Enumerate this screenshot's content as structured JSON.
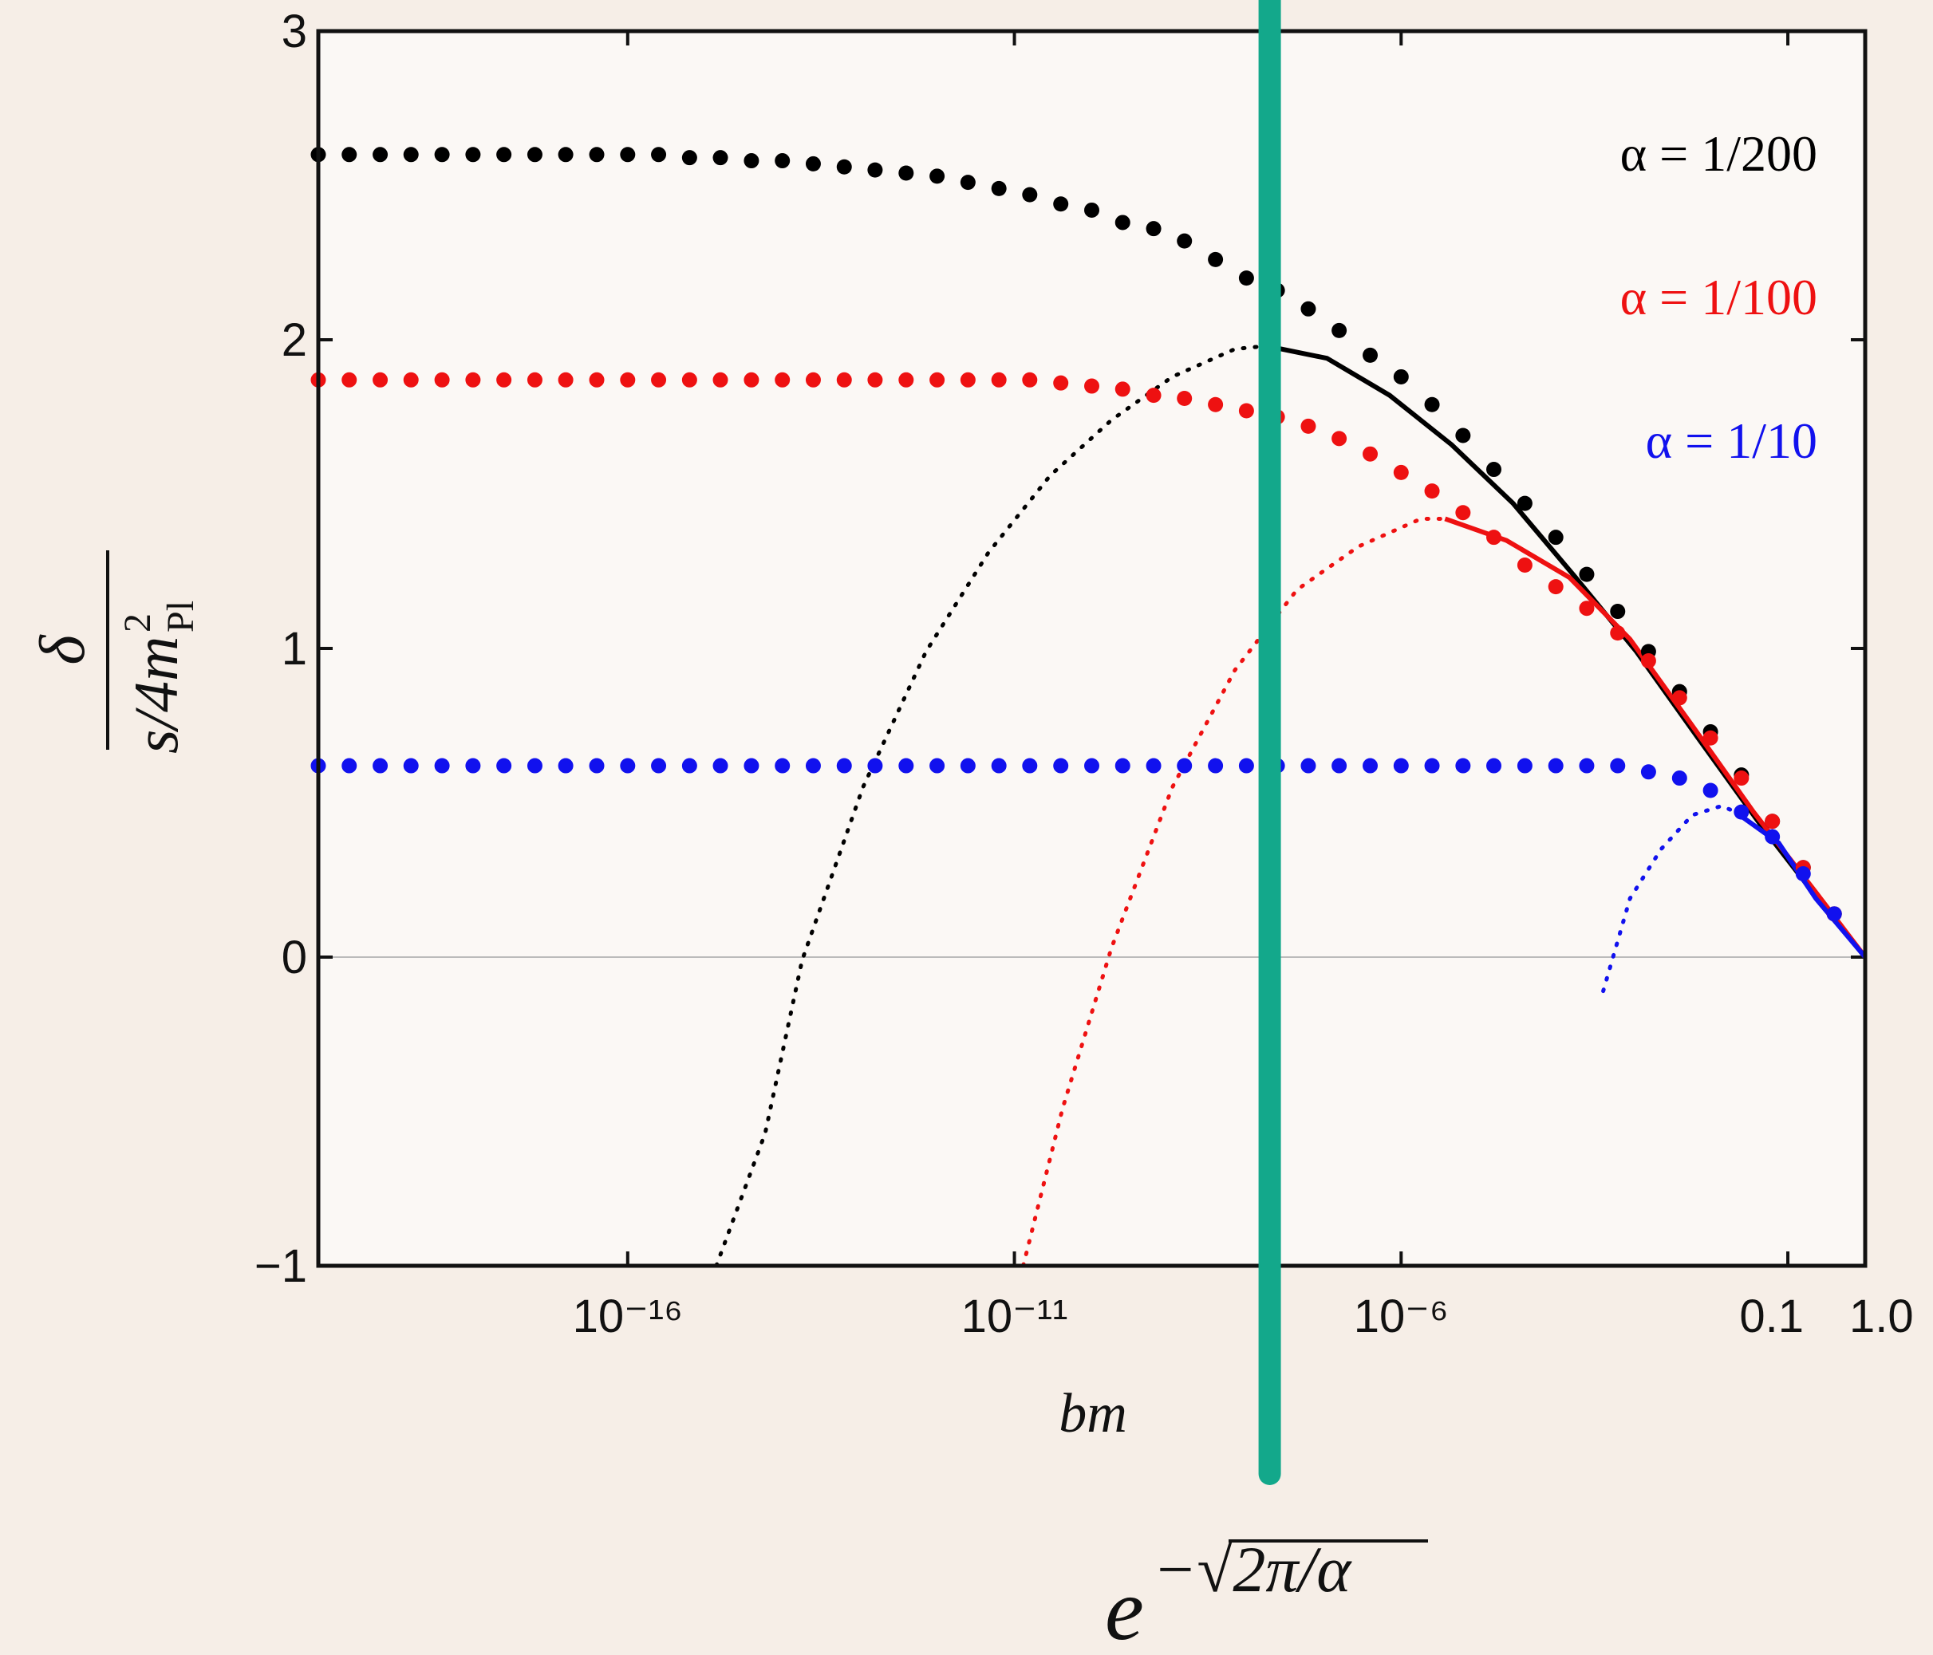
{
  "chart_data": {
    "type": "scatter",
    "xlog": true,
    "xlim": [
      1e-20,
      1
    ],
    "ylim": [
      -1,
      3
    ],
    "xticks": [
      {
        "value": 1e-16,
        "label": "10⁻¹⁶"
      },
      {
        "value": 1e-11,
        "label": "10⁻¹¹"
      },
      {
        "value": 1e-06,
        "label": "10⁻⁶"
      },
      0.1,
      {
        "value": 1,
        "label": "1.0"
      }
    ],
    "yticks": [
      {
        "value": -1,
        "label": "−1"
      },
      0,
      1,
      2,
      3
    ],
    "zero_line": true,
    "legend": "upper right",
    "xlabel": "bm",
    "ylabel": {
      "numerator": "δ",
      "denominator": "s/4m",
      "sup": "2",
      "sub": "Pl"
    },
    "annotation": {
      "base": "e",
      "exponent": "−√2π/α"
    },
    "vband": {
      "x": 2e-08,
      "color": "#13a88b"
    },
    "x": [
      1e-20,
      2.51e-20,
      6.31e-20,
      1.58e-19,
      3.98e-19,
      1e-18,
      2.51e-18,
      6.31e-18,
      1.58e-17,
      3.98e-17,
      1e-16,
      2.51e-16,
      6.31e-16,
      1.58e-15,
      3.98e-15,
      1e-14,
      2.51e-14,
      6.31e-14,
      1.58e-13,
      3.98e-13,
      1e-12,
      2.51e-12,
      6.31e-12,
      1.58e-11,
      3.98e-11,
      1e-10,
      2.51e-10,
      6.31e-10,
      1.58e-09,
      3.98e-09,
      1e-08,
      2.51e-08,
      6.31e-08,
      1.58e-07,
      3.98e-07,
      1e-06,
      2.51e-06,
      6.31e-06,
      1.58e-05,
      3.98e-05,
      0.0001,
      0.000251,
      0.000631,
      0.00158,
      0.00398,
      0.01,
      0.0251,
      0.0631,
      0.158,
      0.398
    ],
    "series": [
      {
        "name": "α = 1/200",
        "color": "#000000",
        "values": [
          2.6,
          2.6,
          2.6,
          2.6,
          2.6,
          2.6,
          2.6,
          2.6,
          2.6,
          2.6,
          2.6,
          2.6,
          2.59,
          2.59,
          2.58,
          2.58,
          2.57,
          2.56,
          2.55,
          2.54,
          2.53,
          2.51,
          2.49,
          2.47,
          2.44,
          2.42,
          2.38,
          2.36,
          2.32,
          2.26,
          2.2,
          2.16,
          2.1,
          2.03,
          1.95,
          1.88,
          1.79,
          1.69,
          1.58,
          1.47,
          1.36,
          1.24,
          1.12,
          0.99,
          0.86,
          0.73,
          0.59,
          0.44,
          0.29,
          0.14
        ],
        "curve_dotted": {
          "x": [
            1.4e-15,
            6e-15,
            1.8e-14,
            1.1e-13,
            7.2e-13,
            4.6e-12,
            2.9e-11,
            1.8e-10,
            1.1e-09,
            7.1e-09,
            1.8e-08
          ],
          "values": [
            -1,
            -0.57,
            -0.01,
            0.55,
            0.99,
            1.31,
            1.56,
            1.74,
            1.88,
            1.97,
            1.98
          ]
        },
        "curve_solid": {
          "x": [
            1.8e-08,
            1.1e-07,
            7.1e-07,
            4.5e-06,
            2.8e-05,
            0.00018,
            0.0011,
            0.0069,
            0.044,
            0.28,
            1
          ],
          "values": [
            1.98,
            1.94,
            1.82,
            1.66,
            1.47,
            1.23,
            0.99,
            0.71,
            0.43,
            0.17,
            0
          ]
        }
      },
      {
        "name": "α = 1/100",
        "color": "#ee1111",
        "values": [
          1.87,
          1.87,
          1.87,
          1.87,
          1.87,
          1.87,
          1.87,
          1.87,
          1.87,
          1.87,
          1.87,
          1.87,
          1.87,
          1.87,
          1.87,
          1.87,
          1.87,
          1.87,
          1.87,
          1.87,
          1.87,
          1.87,
          1.87,
          1.87,
          1.86,
          1.85,
          1.84,
          1.82,
          1.81,
          1.79,
          1.77,
          1.75,
          1.72,
          1.68,
          1.63,
          1.57,
          1.51,
          1.44,
          1.36,
          1.27,
          1.2,
          1.13,
          1.05,
          0.96,
          0.84,
          0.71,
          0.58,
          0.44,
          0.29,
          0.14
        ],
        "curve_dotted": {
          "x": [
            1.3e-11,
            4.2e-11,
            1.8e-10,
            1.1e-09,
            7.1e-09,
            4.5e-08,
            2.8e-07,
            1.8e-06,
            3.7e-06
          ],
          "values": [
            -1,
            -0.49,
            0.03,
            0.55,
            0.93,
            1.19,
            1.33,
            1.42,
            1.42
          ]
        },
        "curve_solid": {
          "x": [
            3.7e-06,
            2.3e-05,
            0.00015,
            0.00091,
            0.0058,
            0.036,
            0.23,
            1
          ],
          "values": [
            1.42,
            1.35,
            1.23,
            1.03,
            0.75,
            0.47,
            0.21,
            0
          ]
        }
      },
      {
        "name": "α = 1/10",
        "color": "#1111ee",
        "values": [
          0.62,
          0.62,
          0.62,
          0.62,
          0.62,
          0.62,
          0.62,
          0.62,
          0.62,
          0.62,
          0.62,
          0.62,
          0.62,
          0.62,
          0.62,
          0.62,
          0.62,
          0.62,
          0.62,
          0.62,
          0.62,
          0.62,
          0.62,
          0.62,
          0.62,
          0.62,
          0.62,
          0.62,
          0.62,
          0.62,
          0.62,
          0.62,
          0.62,
          0.62,
          0.62,
          0.62,
          0.62,
          0.62,
          0.62,
          0.62,
          0.62,
          0.62,
          0.62,
          0.6,
          0.58,
          0.54,
          0.47,
          0.39,
          0.27,
          0.14
        ],
        "curve_dotted": {
          "x": [
            0.00041,
            0.00091,
            0.0023,
            0.0058,
            0.014,
            0.021
          ],
          "values": [
            -0.11,
            0.19,
            0.35,
            0.46,
            0.49,
            0.47
          ]
        },
        "curve_solid": {
          "x": [
            0.021,
            0.076,
            0.23,
            1
          ],
          "values": [
            0.47,
            0.37,
            0.19,
            0
          ]
        }
      }
    ]
  }
}
